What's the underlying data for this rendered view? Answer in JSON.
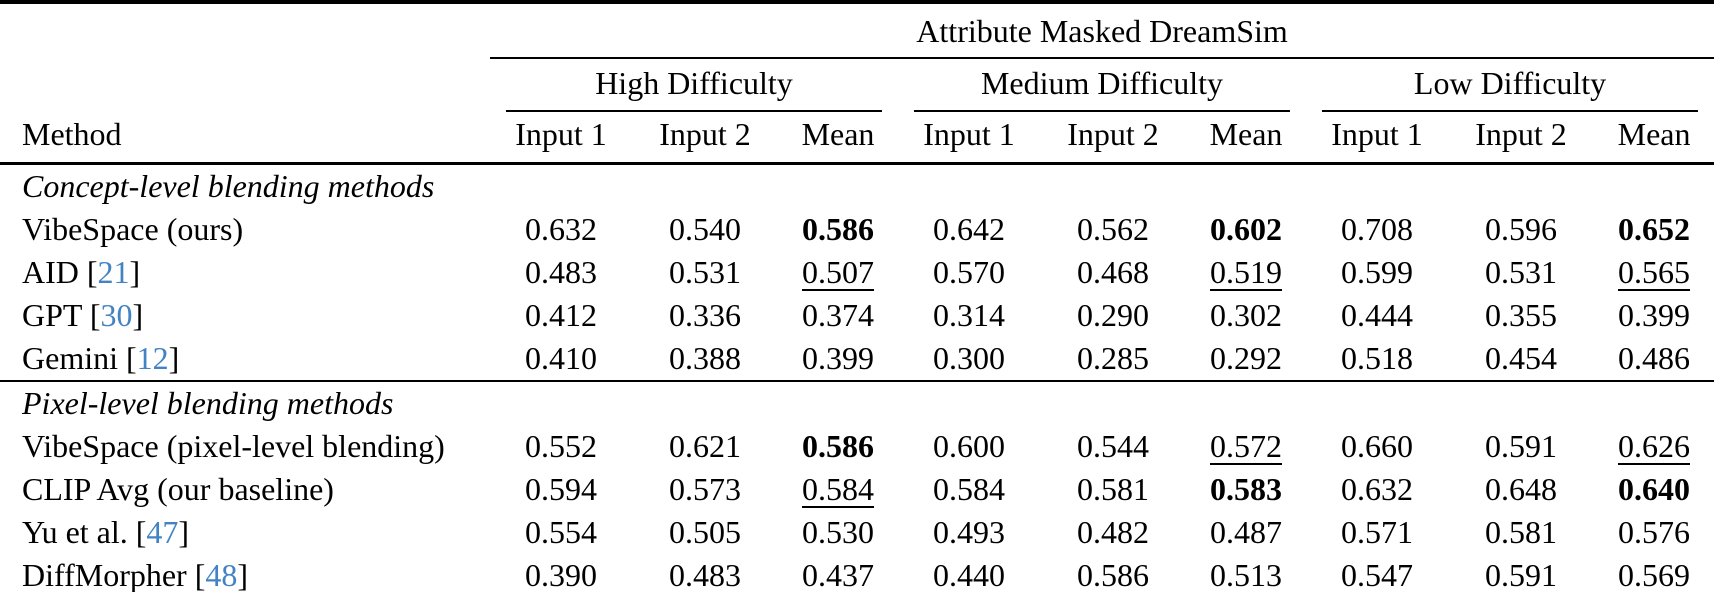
{
  "table": {
    "title": "Attribute Masked DreamSim",
    "method_header": "Method",
    "groups": [
      {
        "label": "High Difficulty"
      },
      {
        "label": "Medium Difficulty"
      },
      {
        "label": "Low Difficulty"
      }
    ],
    "subcolumns": [
      "Input 1",
      "Input 2",
      "Mean"
    ],
    "sections": [
      {
        "label": "Concept-level blending methods",
        "rows": [
          {
            "method": "VibeSpace (ours)",
            "cite": "",
            "values": [
              "0.632",
              "0.540",
              "0.586",
              "0.642",
              "0.562",
              "0.602",
              "0.708",
              "0.596",
              "0.652"
            ],
            "bold": [
              2,
              5,
              8
            ],
            "underline": []
          },
          {
            "method": "AID",
            "cite": "21",
            "values": [
              "0.483",
              "0.531",
              "0.507",
              "0.570",
              "0.468",
              "0.519",
              "0.599",
              "0.531",
              "0.565"
            ],
            "bold": [],
            "underline": [
              2,
              5,
              8
            ]
          },
          {
            "method": "GPT",
            "cite": "30",
            "values": [
              "0.412",
              "0.336",
              "0.374",
              "0.314",
              "0.290",
              "0.302",
              "0.444",
              "0.355",
              "0.399"
            ],
            "bold": [],
            "underline": []
          },
          {
            "method": "Gemini",
            "cite": "12",
            "values": [
              "0.410",
              "0.388",
              "0.399",
              "0.300",
              "0.285",
              "0.292",
              "0.518",
              "0.454",
              "0.486"
            ],
            "bold": [],
            "underline": []
          }
        ]
      },
      {
        "label": "Pixel-level blending methods",
        "rows": [
          {
            "method": "VibeSpace (pixel-level blending)",
            "cite": "",
            "values": [
              "0.552",
              "0.621",
              "0.586",
              "0.600",
              "0.544",
              "0.572",
              "0.660",
              "0.591",
              "0.626"
            ],
            "bold": [
              2
            ],
            "underline": [
              5,
              8
            ]
          },
          {
            "method": "CLIP Avg (our baseline)",
            "cite": "",
            "values": [
              "0.594",
              "0.573",
              "0.584",
              "0.584",
              "0.581",
              "0.583",
              "0.632",
              "0.648",
              "0.640"
            ],
            "bold": [
              5,
              8
            ],
            "underline": [
              2
            ]
          },
          {
            "method": "Yu et al.",
            "cite": "47",
            "values": [
              "0.554",
              "0.505",
              "0.530",
              "0.493",
              "0.482",
              "0.487",
              "0.571",
              "0.581",
              "0.576"
            ],
            "bold": [],
            "underline": []
          },
          {
            "method": "DiffMorpher",
            "cite": "48",
            "values": [
              "0.390",
              "0.483",
              "0.437",
              "0.440",
              "0.586",
              "0.513",
              "0.547",
              "0.591",
              "0.569"
            ],
            "bold": [],
            "underline": []
          }
        ]
      }
    ]
  },
  "colors": {
    "text": "#000000",
    "background": "#ffffff",
    "rule": "#000000",
    "citation": "#4383c4"
  }
}
